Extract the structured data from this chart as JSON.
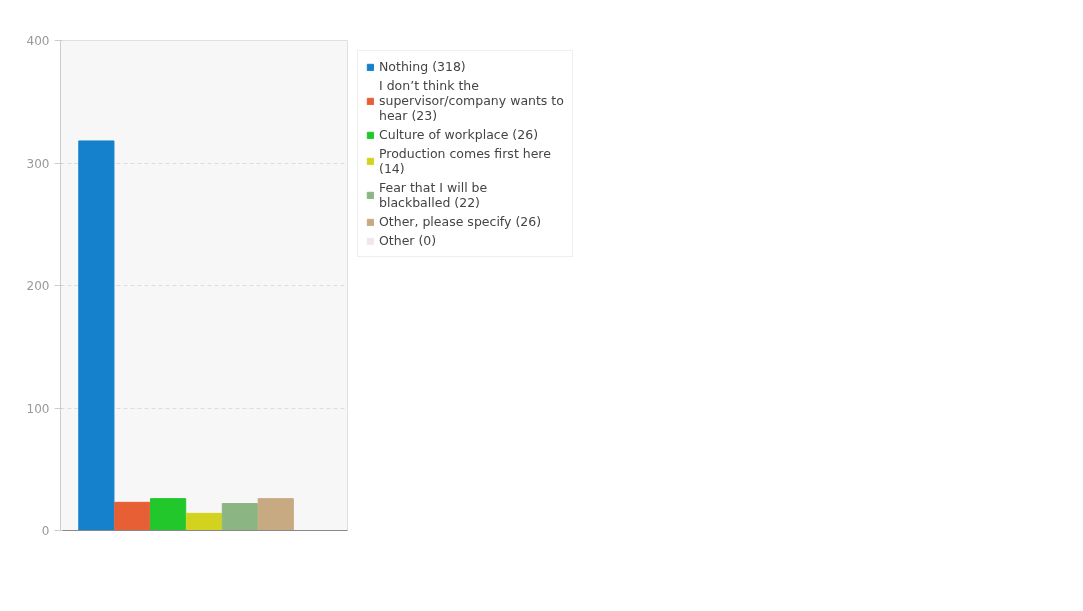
{
  "chart_data": {
    "type": "bar",
    "categories": [
      null,
      null,
      null,
      null,
      null,
      null,
      null
    ],
    "series": [
      {
        "name": "Nothing (318)",
        "color": "#1581cc",
        "values": [
          318,
          null,
          null,
          null,
          null,
          null,
          null
        ]
      },
      {
        "name": "I don’t think the supervisor/company wants to hear (23)",
        "color": "#e65f35",
        "values": [
          null,
          23,
          null,
          null,
          null,
          null,
          null
        ]
      },
      {
        "name": "Culture of workplace (26)",
        "color": "#21c72b",
        "values": [
          null,
          null,
          26,
          null,
          null,
          null,
          null
        ]
      },
      {
        "name": "Production comes first here (14)",
        "color": "#d3d31f",
        "values": [
          null,
          null,
          null,
          14,
          null,
          null,
          null
        ]
      },
      {
        "name": "Fear that I will be blackballed (22)",
        "color": "#8bb582",
        "values": [
          null,
          null,
          null,
          null,
          22,
          null,
          null
        ]
      },
      {
        "name": "Other, please specify (26)",
        "color": "#c8aa82",
        "values": [
          null,
          null,
          null,
          null,
          null,
          26,
          null
        ]
      },
      {
        "name": "Other (0)",
        "color": "#f2e6e6",
        "values": [
          null,
          null,
          null,
          null,
          null,
          null,
          0
        ]
      }
    ],
    "ylim": [
      0,
      400
    ],
    "yticks": [
      0,
      100,
      200,
      300,
      400
    ],
    "grid": "y",
    "legend": "top right"
  }
}
